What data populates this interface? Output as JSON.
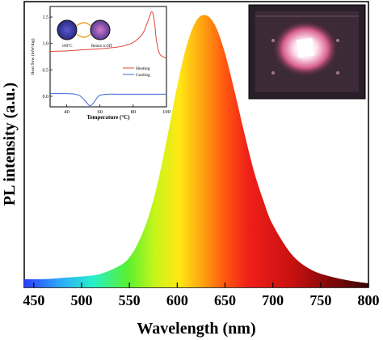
{
  "chart_data": {
    "type": "area",
    "title": "",
    "xlabel": "Wavelength (nm)",
    "ylabel": "PL intensity (a.u.)",
    "xlim": [
      440,
      800
    ],
    "ylim": [
      0,
      1.05
    ],
    "x_ticks": [
      450,
      500,
      550,
      600,
      650,
      700,
      750,
      800
    ],
    "x_tick_labels": [
      "450",
      "500",
      "550",
      "600",
      "650",
      "700",
      "750",
      "800"
    ],
    "grid": false,
    "legend": "none",
    "fill": "spectral gradient",
    "series": [
      {
        "x": [
          440,
          460,
          480,
          500,
          520,
          540,
          550,
          560,
          570,
          580,
          590,
          600,
          610,
          620,
          630,
          640,
          650,
          660,
          670,
          680,
          690,
          700,
          720,
          740,
          760,
          780,
          800
        ],
        "y": [
          0.03,
          0.03,
          0.035,
          0.04,
          0.05,
          0.08,
          0.11,
          0.17,
          0.26,
          0.39,
          0.56,
          0.74,
          0.89,
          0.98,
          1.0,
          0.96,
          0.86,
          0.72,
          0.57,
          0.43,
          0.32,
          0.23,
          0.12,
          0.065,
          0.04,
          0.025,
          0.015
        ]
      }
    ],
    "inset_dsc": {
      "type": "line",
      "xlabel": "Temperature (°C)",
      "ylabel": "Heat flow (mW/mg)",
      "xlim": [
        30,
        100
      ],
      "ylim": [
        -0.2,
        1.7
      ],
      "x_ticks": [
        40,
        60,
        80,
        100
      ],
      "x_tick_labels": [
        "40",
        "60",
        "80",
        "100"
      ],
      "y_ticks": [
        0.0,
        0.5,
        1.0,
        1.5
      ],
      "y_tick_labels": [
        "0.0",
        "0.5",
        "1.0",
        "1.5"
      ],
      "legend": "inside-right",
      "annotations": [
        "100°C",
        "Return to RT"
      ],
      "series": [
        {
          "name": "Heating",
          "color": "#e0453a",
          "x": [
            30,
            40,
            50,
            60,
            70,
            75,
            80,
            84,
            86,
            88,
            90,
            91,
            92,
            93,
            94,
            96,
            100
          ],
          "y": [
            0.85,
            0.86,
            0.88,
            0.9,
            0.93,
            0.96,
            1.02,
            1.12,
            1.2,
            1.35,
            1.52,
            1.6,
            1.55,
            1.35,
            1.05,
            0.8,
            0.72
          ]
        },
        {
          "name": "Cooling",
          "color": "#3a66d8",
          "x": [
            30,
            40,
            45,
            48,
            50,
            52,
            54,
            56,
            58,
            60,
            65,
            70,
            80,
            90,
            100
          ],
          "y": [
            0.05,
            0.05,
            0.04,
            0.01,
            -0.05,
            -0.12,
            -0.18,
            -0.13,
            -0.04,
            0.02,
            0.04,
            0.04,
            0.04,
            0.04,
            0.04
          ]
        }
      ]
    }
  }
}
